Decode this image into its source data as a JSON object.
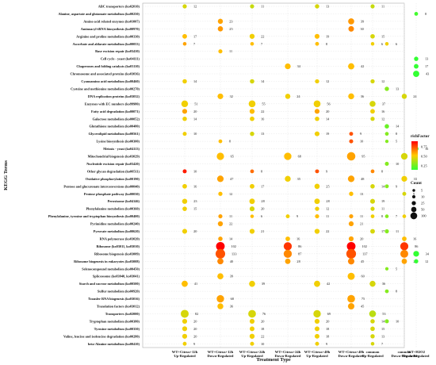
{
  "chart_data": {
    "type": "scatter",
    "xlabel": "Treatment Type",
    "ylabel": "KEGG Terms",
    "x_categories": [
      {
        "line1": "WT+Citrus+12h",
        "line2": "Up-Regulated"
      },
      {
        "line1": "WT+Citrus+12h",
        "line2": "Down-Regulated"
      },
      {
        "line1": "WT+Citrus+24h",
        "line2": "Up-Regulated"
      },
      {
        "line1": "WT+Citrus+24h",
        "line2": "Down-Regulated"
      },
      {
        "line1": "WT+Citrus+48h",
        "line2": "Up-Regulated"
      },
      {
        "line1": "WT+Citrus+48h",
        "line2": "Down-Regulated"
      },
      {
        "line1": "common",
        "line2": "Up-Regulated"
      },
      {
        "line1": "common",
        "line2": "Down-Regulated"
      },
      {
        "line1": "WT+H2O2",
        "line2": "Up-Regulated"
      },
      {
        "line1": "WT+H2O2",
        "line2": "Down-Regulated"
      }
    ],
    "terms": [
      "ABC transporters (ko02010)",
      "Alanine, aspartate and glutamate metabolism (ko00250)",
      "Amino acid related enzymes (ko01007)",
      "Aminoacyl-tRNA biosynthesis (ko00970)",
      "Arginine and proline metabolism (ko00330)",
      "Ascorbate and aldarate metabolism (ko00053)",
      "Base excision repair (ko03410)",
      "Cell cycle - yeast (ko04111)",
      "Chaperones and folding catalysts (ko03110)",
      "Chromosome and associated proteins (ko03036)",
      "Cyanoamino acid metabolism (ko00460)",
      "Cysteine and methionine metabolism (ko00270)",
      "DNA replication proteins (ko03032)",
      "Enzymes with EC numbers (ko99980)",
      "Fatty acid degradation (ko00071)",
      "Galactose metabolism (ko00052)",
      "Glutathione metabolism (ko00480)",
      "Glycerolipid metabolism (ko00561)",
      "Lysine biosynthesis (ko00300)",
      "Meiosis - yeast (ko04113)",
      "Mitochondrial biogenesis (ko03029)",
      "Nucleotide excision repair (ko03420)",
      "Other glycan degradation (ko00511)",
      "Oxidative phosphorylation (ko00190)",
      "Pentose and glucuronate interconversions (ko00040)",
      "Pentose phosphate pathway (ko00030)",
      "Peroxisome (ko04146)",
      "Phenylalanine metabolism (ko00360)",
      "Phenylalanine, tyrosine and tryptophan biosynthesis (ko00400)",
      "Pyrimidine metabolism (ko00240)",
      "Pyruvate metabolism (ko00620)",
      "RNA polymerase (ko03020)",
      "Ribosome (ko03011, ko03010)",
      "Ribosome biogenesis (ko03009)",
      "Ribosome biogenesis in eukaryotes (ko03008)",
      "Selenocompound metabolism (ko00450)",
      "Spliceosome (ko03040, ko03041)",
      "Starch and sucrose metabolism (ko00500)",
      "Sulfur metabolism (ko00920)",
      "Transfer RNA biogenesis (ko03016)",
      "Translation factors (ko03012)",
      "Transporters (ko02000)",
      "Tryptophan metabolism (ko00380)",
      "Tyrosine metabolism (ko00350)",
      "Valine, leucine and isoleucine degradation (ko00280)",
      "beta-Alanine metabolism (ko00410)"
    ],
    "points": [
      {
        "term": 0,
        "col": 0,
        "count": 12,
        "rich": 0.45
      },
      {
        "term": 0,
        "col": 2,
        "count": 11,
        "rich": 0.42
      },
      {
        "term": 0,
        "col": 4,
        "count": 13,
        "rich": 0.45
      },
      {
        "term": 0,
        "col": 6,
        "count": 11,
        "rich": 0.42
      },
      {
        "term": 1,
        "col": 9,
        "count": 8,
        "rich": 0.18
      },
      {
        "term": 2,
        "col": 1,
        "count": 23,
        "rich": 0.6
      },
      {
        "term": 2,
        "col": 5,
        "count": 39,
        "rich": 0.62
      },
      {
        "term": 3,
        "col": 1,
        "count": 25,
        "rich": 0.62
      },
      {
        "term": 3,
        "col": 5,
        "count": 30,
        "rich": 0.65
      },
      {
        "term": 4,
        "col": 0,
        "count": 17,
        "rich": 0.55
      },
      {
        "term": 4,
        "col": 2,
        "count": 22,
        "rich": 0.5
      },
      {
        "term": 4,
        "col": 4,
        "count": 19,
        "rich": 0.55
      },
      {
        "term": 4,
        "col": 6,
        "count": 15,
        "rich": 0.45
      },
      {
        "term": 5,
        "col": 0,
        "count": 7,
        "rich": 0.6
      },
      {
        "term": 5,
        "col": 2,
        "count": 7,
        "rich": 0.55
      },
      {
        "term": 5,
        "col": 4,
        "count": 8,
        "rich": 0.55
      },
      {
        "term": 5,
        "col": 6,
        "count": 6,
        "rich": 0.5
      },
      {
        "term": 5,
        "col": 8,
        "count": 6,
        "rich": 0.5
      },
      {
        "term": 6,
        "col": 1,
        "count": 11,
        "rich": 0.55
      },
      {
        "term": 7,
        "col": 9,
        "count": 13,
        "rich": 0.15
      },
      {
        "term": 8,
        "col": 3,
        "count": 34,
        "rich": 0.55
      },
      {
        "term": 8,
        "col": 5,
        "count": 42,
        "rich": 0.55
      },
      {
        "term": 8,
        "col": 9,
        "count": 17,
        "rich": 0.15
      },
      {
        "term": 9,
        "col": 9,
        "count": 43,
        "rich": 0.12
      },
      {
        "term": 10,
        "col": 0,
        "count": 14,
        "rich": 0.5
      },
      {
        "term": 10,
        "col": 2,
        "count": 14,
        "rich": 0.45
      },
      {
        "term": 10,
        "col": 4,
        "count": 12,
        "rich": 0.5
      },
      {
        "term": 10,
        "col": 6,
        "count": 12,
        "rich": 0.45
      },
      {
        "term": 11,
        "col": 8,
        "count": 13,
        "rich": 0.3
      },
      {
        "term": 12,
        "col": 1,
        "count": 32,
        "rich": 0.55
      },
      {
        "term": 12,
        "col": 3,
        "count": 24,
        "rich": 0.5
      },
      {
        "term": 12,
        "col": 5,
        "count": 36,
        "rich": 0.55
      },
      {
        "term": 12,
        "col": 7,
        "count": 24,
        "rich": 0.45
      },
      {
        "term": 13,
        "col": 0,
        "count": 51,
        "rich": 0.5
      },
      {
        "term": 13,
        "col": 2,
        "count": 55,
        "rich": 0.5
      },
      {
        "term": 13,
        "col": 4,
        "count": 56,
        "rich": 0.5
      },
      {
        "term": 13,
        "col": 6,
        "count": 37,
        "rich": 0.45
      },
      {
        "term": 14,
        "col": 0,
        "count": 20,
        "rich": 0.6
      },
      {
        "term": 14,
        "col": 2,
        "count": 22,
        "rich": 0.55
      },
      {
        "term": 14,
        "col": 4,
        "count": 20,
        "rich": 0.6
      },
      {
        "term": 14,
        "col": 6,
        "count": 16,
        "rich": 0.5
      },
      {
        "term": 15,
        "col": 0,
        "count": 14,
        "rich": 0.5
      },
      {
        "term": 15,
        "col": 2,
        "count": 16,
        "rich": 0.5
      },
      {
        "term": 15,
        "col": 4,
        "count": 14,
        "rich": 0.5
      },
      {
        "term": 15,
        "col": 6,
        "count": 12,
        "rich": 0.45
      },
      {
        "term": 16,
        "col": 8,
        "count": 14,
        "rich": 0.25
      },
      {
        "term": 17,
        "col": 0,
        "count": 10,
        "rich": 0.5
      },
      {
        "term": 17,
        "col": 2,
        "count": 13,
        "rich": 0.45
      },
      {
        "term": 17,
        "col": 4,
        "count": 19,
        "rich": 0.5
      },
      {
        "term": 17,
        "col": 5,
        "count": 9,
        "rich": 0.75
      },
      {
        "term": 17,
        "col": 8,
        "count": 8,
        "rich": 0.3
      },
      {
        "term": 18,
        "col": 1,
        "count": 8,
        "rich": 0.55
      },
      {
        "term": 18,
        "col": 5,
        "count": 10,
        "rich": 0.75
      },
      {
        "term": 18,
        "col": 8,
        "count": 5,
        "rich": 0.3
      },
      {
        "term": 19,
        "col": 9,
        "count": 16,
        "rich": 0.12
      },
      {
        "term": 20,
        "col": 1,
        "count": 65,
        "rich": 0.55
      },
      {
        "term": 20,
        "col": 3,
        "count": 68,
        "rich": 0.55
      },
      {
        "term": 20,
        "col": 5,
        "count": 95,
        "rich": 0.6
      },
      {
        "term": 20,
        "col": 7,
        "count": 50,
        "rich": 0.45
      },
      {
        "term": 21,
        "col": 8,
        "count": 10,
        "rich": 0.3
      },
      {
        "term": 22,
        "col": 0,
        "count": 10,
        "rich": 0.85
      },
      {
        "term": 22,
        "col": 2,
        "count": 8,
        "rich": 0.7
      },
      {
        "term": 22,
        "col": 4,
        "count": 9,
        "rich": 0.75
      },
      {
        "term": 22,
        "col": 6,
        "count": 8,
        "rich": 0.65
      },
      {
        "term": 23,
        "col": 1,
        "count": 47,
        "rich": 0.6
      },
      {
        "term": 23,
        "col": 3,
        "count": 35,
        "rich": 0.5
      },
      {
        "term": 23,
        "col": 5,
        "count": 48,
        "rich": 0.6
      },
      {
        "term": 23,
        "col": 7,
        "count": 33,
        "rich": 0.5
      },
      {
        "term": 24,
        "col": 0,
        "count": 16,
        "rich": 0.5
      },
      {
        "term": 24,
        "col": 2,
        "count": 17,
        "rich": 0.5
      },
      {
        "term": 24,
        "col": 4,
        "count": 25,
        "rich": 0.5
      },
      {
        "term": 24,
        "col": 6,
        "count": 14,
        "rich": 0.45
      },
      {
        "term": 24,
        "col": 8,
        "count": 9,
        "rich": 0.3
      },
      {
        "term": 25,
        "col": 1,
        "count": 12,
        "rich": 0.55
      },
      {
        "term": 25,
        "col": 5,
        "count": 13,
        "rich": 0.55
      },
      {
        "term": 25,
        "col": 7,
        "count": 9,
        "rich": 0.45
      },
      {
        "term": 26,
        "col": 0,
        "count": 23,
        "rich": 0.5
      },
      {
        "term": 26,
        "col": 2,
        "count": 28,
        "rich": 0.5
      },
      {
        "term": 26,
        "col": 4,
        "count": 28,
        "rich": 0.5
      },
      {
        "term": 26,
        "col": 6,
        "count": 19,
        "rich": 0.45
      },
      {
        "term": 27,
        "col": 0,
        "count": 15,
        "rich": 0.5
      },
      {
        "term": 27,
        "col": 2,
        "count": 20,
        "rich": 0.45
      },
      {
        "term": 27,
        "col": 4,
        "count": 12,
        "rich": 0.5
      },
      {
        "term": 27,
        "col": 6,
        "count": 11,
        "rich": 0.45
      },
      {
        "term": 28,
        "col": 1,
        "count": 11,
        "rich": 0.6
      },
      {
        "term": 28,
        "col": 2,
        "count": 6,
        "rich": 0.55
      },
      {
        "term": 28,
        "col": 3,
        "count": 9,
        "rich": 0.5
      },
      {
        "term": 28,
        "col": 4,
        "count": 11,
        "rich": 0.55
      },
      {
        "term": 28,
        "col": 5,
        "count": 11,
        "rich": 0.6
      },
      {
        "term": 28,
        "col": 6,
        "count": 8,
        "rich": 0.5
      },
      {
        "term": 28,
        "col": 7,
        "count": 7,
        "rich": 0.5
      },
      {
        "term": 28,
        "col": 8,
        "count": 7,
        "rich": 0.3
      },
      {
        "term": 29,
        "col": 1,
        "count": 22,
        "rich": 0.6
      },
      {
        "term": 29,
        "col": 5,
        "count": 21,
        "rich": 0.6
      },
      {
        "term": 30,
        "col": 0,
        "count": 20,
        "rich": 0.5
      },
      {
        "term": 30,
        "col": 2,
        "count": 21,
        "rich": 0.5
      },
      {
        "term": 30,
        "col": 4,
        "count": 22,
        "rich": 0.5
      },
      {
        "term": 30,
        "col": 6,
        "count": 17,
        "rich": 0.45
      },
      {
        "term": 30,
        "col": 8,
        "count": 11,
        "rich": 0.3
      },
      {
        "term": 31,
        "col": 1,
        "count": 14,
        "rich": 0.6
      },
      {
        "term": 31,
        "col": 3,
        "count": 16,
        "rich": 0.55
      },
      {
        "term": 31,
        "col": 5,
        "count": 20,
        "rich": 0.6
      },
      {
        "term": 31,
        "col": 7,
        "count": 16,
        "rich": 0.55
      },
      {
        "term": 32,
        "col": 1,
        "count": 102,
        "rich": 0.9
      },
      {
        "term": 32,
        "col": 3,
        "count": 86,
        "rich": 0.8
      },
      {
        "term": 32,
        "col": 5,
        "count": 102,
        "rich": 0.9
      },
      {
        "term": 32,
        "col": 7,
        "count": 86,
        "rich": 0.8
      },
      {
        "term": 33,
        "col": 1,
        "count": 133,
        "rich": 0.75
      },
      {
        "term": 33,
        "col": 3,
        "count": 87,
        "rich": 0.65
      },
      {
        "term": 33,
        "col": 5,
        "count": 137,
        "rich": 0.75
      },
      {
        "term": 33,
        "col": 7,
        "count": 80,
        "rich": 0.65
      },
      {
        "term": 33,
        "col": 9,
        "count": 34,
        "rich": 0.12
      },
      {
        "term": 34,
        "col": 1,
        "count": 40,
        "rich": 0.65
      },
      {
        "term": 34,
        "col": 3,
        "count": 28,
        "rich": 0.6
      },
      {
        "term": 34,
        "col": 5,
        "count": 45,
        "rich": 0.65
      },
      {
        "term": 34,
        "col": 7,
        "count": 27,
        "rich": 0.6
      },
      {
        "term": 34,
        "col": 9,
        "count": 12,
        "rich": 0.15
      },
      {
        "term": 35,
        "col": 8,
        "count": 5,
        "rich": 0.3
      },
      {
        "term": 36,
        "col": 1,
        "count": 39,
        "rich": 0.55
      },
      {
        "term": 36,
        "col": 5,
        "count": 60,
        "rich": 0.55
      },
      {
        "term": 37,
        "col": 0,
        "count": 41,
        "rich": 0.55
      },
      {
        "term": 37,
        "col": 2,
        "count": 39,
        "rich": 0.5
      },
      {
        "term": 37,
        "col": 4,
        "count": 42,
        "rich": 0.5
      },
      {
        "term": 37,
        "col": 6,
        "count": 36,
        "rich": 0.45
      },
      {
        "term": 38,
        "col": 8,
        "count": 8,
        "rich": 0.3
      },
      {
        "term": 39,
        "col": 1,
        "count": 68,
        "rich": 0.6
      },
      {
        "term": 39,
        "col": 5,
        "count": 75,
        "rich": 0.6
      },
      {
        "term": 40,
        "col": 1,
        "count": 36,
        "rich": 0.55
      },
      {
        "term": 40,
        "col": 5,
        "count": 45,
        "rich": 0.6
      },
      {
        "term": 41,
        "col": 0,
        "count": 82,
        "rich": 0.45
      },
      {
        "term": 41,
        "col": 2,
        "count": 76,
        "rich": 0.45
      },
      {
        "term": 41,
        "col": 4,
        "count": 69,
        "rich": 0.45
      },
      {
        "term": 41,
        "col": 6,
        "count": 53,
        "rich": 0.4
      },
      {
        "term": 42,
        "col": 0,
        "count": 20,
        "rich": 0.5
      },
      {
        "term": 42,
        "col": 2,
        "count": 20,
        "rich": 0.5
      },
      {
        "term": 42,
        "col": 4,
        "count": 20,
        "rich": 0.5
      },
      {
        "term": 42,
        "col": 6,
        "count": 14,
        "rich": 0.45
      },
      {
        "term": 42,
        "col": 8,
        "count": 10,
        "rich": 0.3
      },
      {
        "term": 43,
        "col": 0,
        "count": 20,
        "rich": 0.5
      },
      {
        "term": 43,
        "col": 2,
        "count": 18,
        "rich": 0.5
      },
      {
        "term": 43,
        "col": 4,
        "count": 18,
        "rich": 0.5
      },
      {
        "term": 43,
        "col": 6,
        "count": 15,
        "rich": 0.45
      },
      {
        "term": 44,
        "col": 0,
        "count": 20,
        "rich": 0.5
      },
      {
        "term": 44,
        "col": 2,
        "count": 22,
        "rich": 0.5
      },
      {
        "term": 44,
        "col": 4,
        "count": 18,
        "rich": 0.5
      },
      {
        "term": 44,
        "col": 6,
        "count": 13,
        "rich": 0.45
      },
      {
        "term": 45,
        "col": 0,
        "count": 9,
        "rich": 0.5
      },
      {
        "term": 45,
        "col": 2,
        "count": 10,
        "rich": 0.5
      },
      {
        "term": 45,
        "col": 4,
        "count": 9,
        "rich": 0.5
      },
      {
        "term": 45,
        "col": 6,
        "count": 7,
        "rich": 0.45
      }
    ],
    "color_legend": {
      "title": "richFactor",
      "ticks": [
        0.75,
        0.5,
        0.25
      ],
      "low_color": "#33ff33",
      "mid_color": "#ffcc00",
      "high_color": "#ff0000"
    },
    "size_legend": {
      "title": "Count",
      "values": [
        5,
        10,
        25,
        50,
        100
      ]
    },
    "grid": true
  }
}
